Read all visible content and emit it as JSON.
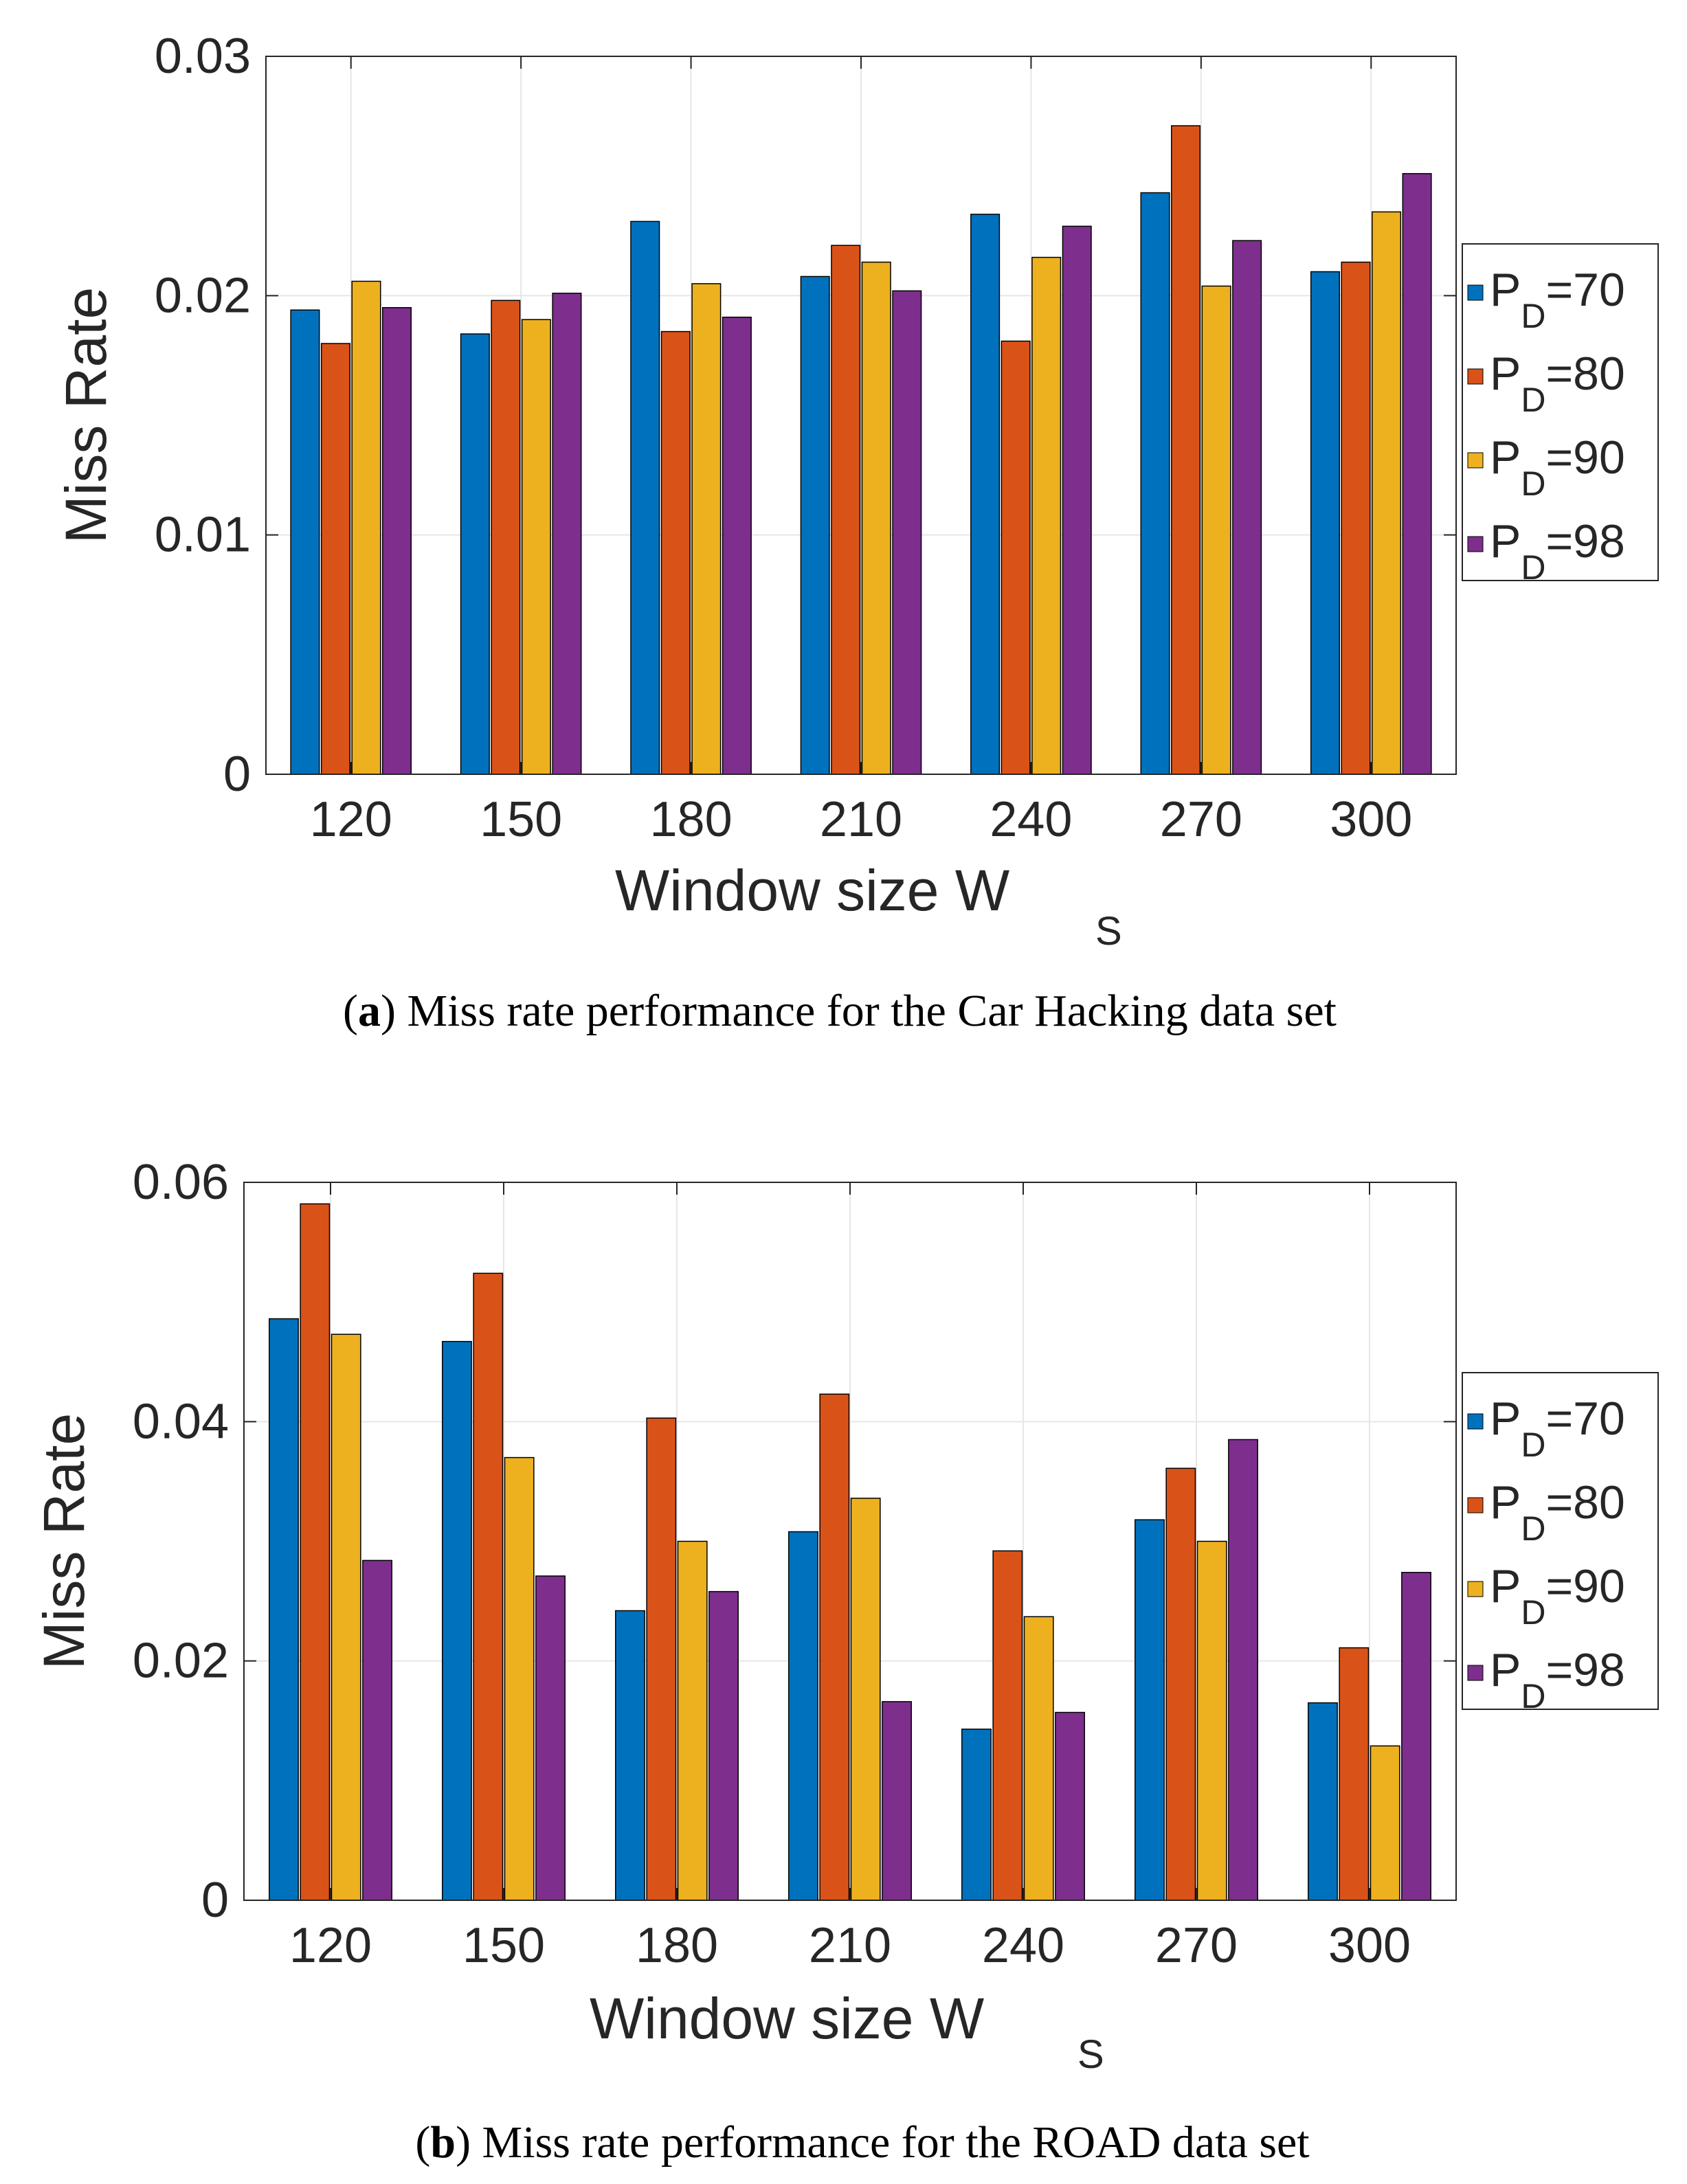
{
  "series_colors": [
    "#0072BD",
    "#D95319",
    "#EDB120",
    "#7E2F8E"
  ],
  "chart_data": [
    {
      "type": "bar",
      "title": "",
      "xlabel": "Window size W",
      "xlabel_sub": "S",
      "ylabel": "Miss Rate",
      "ylim": [
        0,
        0.03
      ],
      "yticks": [
        0,
        0.01,
        0.02,
        0.03
      ],
      "ytick_labels": [
        "0",
        "0.01",
        "0.02",
        "0.03"
      ],
      "grid": true,
      "legend": "outside-right",
      "categories": [
        "120",
        "150",
        "180",
        "210",
        "240",
        "270",
        "300"
      ],
      "series": [
        {
          "name": "P",
          "sub": "D",
          "value_label": "=70",
          "values": [
            0.0194,
            0.0184,
            0.0231,
            0.0208,
            0.0234,
            0.0243,
            0.021
          ]
        },
        {
          "name": "P",
          "sub": "D",
          "value_label": "=80",
          "values": [
            0.018,
            0.0198,
            0.0185,
            0.0221,
            0.0181,
            0.0271,
            0.0214
          ]
        },
        {
          "name": "P",
          "sub": "D",
          "value_label": "=90",
          "values": [
            0.0206,
            0.019,
            0.0205,
            0.0214,
            0.0216,
            0.0204,
            0.0235
          ]
        },
        {
          "name": "P",
          "sub": "D",
          "value_label": "=98",
          "values": [
            0.0195,
            0.0201,
            0.0191,
            0.0202,
            0.0229,
            0.0223,
            0.0251
          ]
        }
      ],
      "caption_label": "a",
      "caption_text": "Miss rate performance for the Car Hacking data set"
    },
    {
      "type": "bar",
      "title": "",
      "xlabel": "Window size W",
      "xlabel_sub": "S",
      "ylabel": "Miss Rate",
      "ylim": [
        0,
        0.06
      ],
      "yticks": [
        0,
        0.02,
        0.04,
        0.06
      ],
      "ytick_labels": [
        "0",
        "0.02",
        "0.04",
        "0.06"
      ],
      "grid": true,
      "legend": "outside-right",
      "categories": [
        "120",
        "150",
        "180",
        "210",
        "240",
        "270",
        "300"
      ],
      "series": [
        {
          "name": "P",
          "sub": "D",
          "value_label": "=70",
          "values": [
            0.0486,
            0.0467,
            0.0242,
            0.0308,
            0.0143,
            0.0318,
            0.0165
          ]
        },
        {
          "name": "P",
          "sub": "D",
          "value_label": "=80",
          "values": [
            0.0582,
            0.0524,
            0.0403,
            0.0423,
            0.0292,
            0.0361,
            0.0211
          ]
        },
        {
          "name": "P",
          "sub": "D",
          "value_label": "=90",
          "values": [
            0.0473,
            0.037,
            0.03,
            0.0336,
            0.0237,
            0.03,
            0.0129
          ]
        },
        {
          "name": "P",
          "sub": "D",
          "value_label": "=98",
          "values": [
            0.0284,
            0.0271,
            0.0258,
            0.0166,
            0.0157,
            0.0385,
            0.0274
          ]
        }
      ],
      "caption_label": "b",
      "caption_text": "Miss rate performance for the ROAD data set"
    }
  ]
}
